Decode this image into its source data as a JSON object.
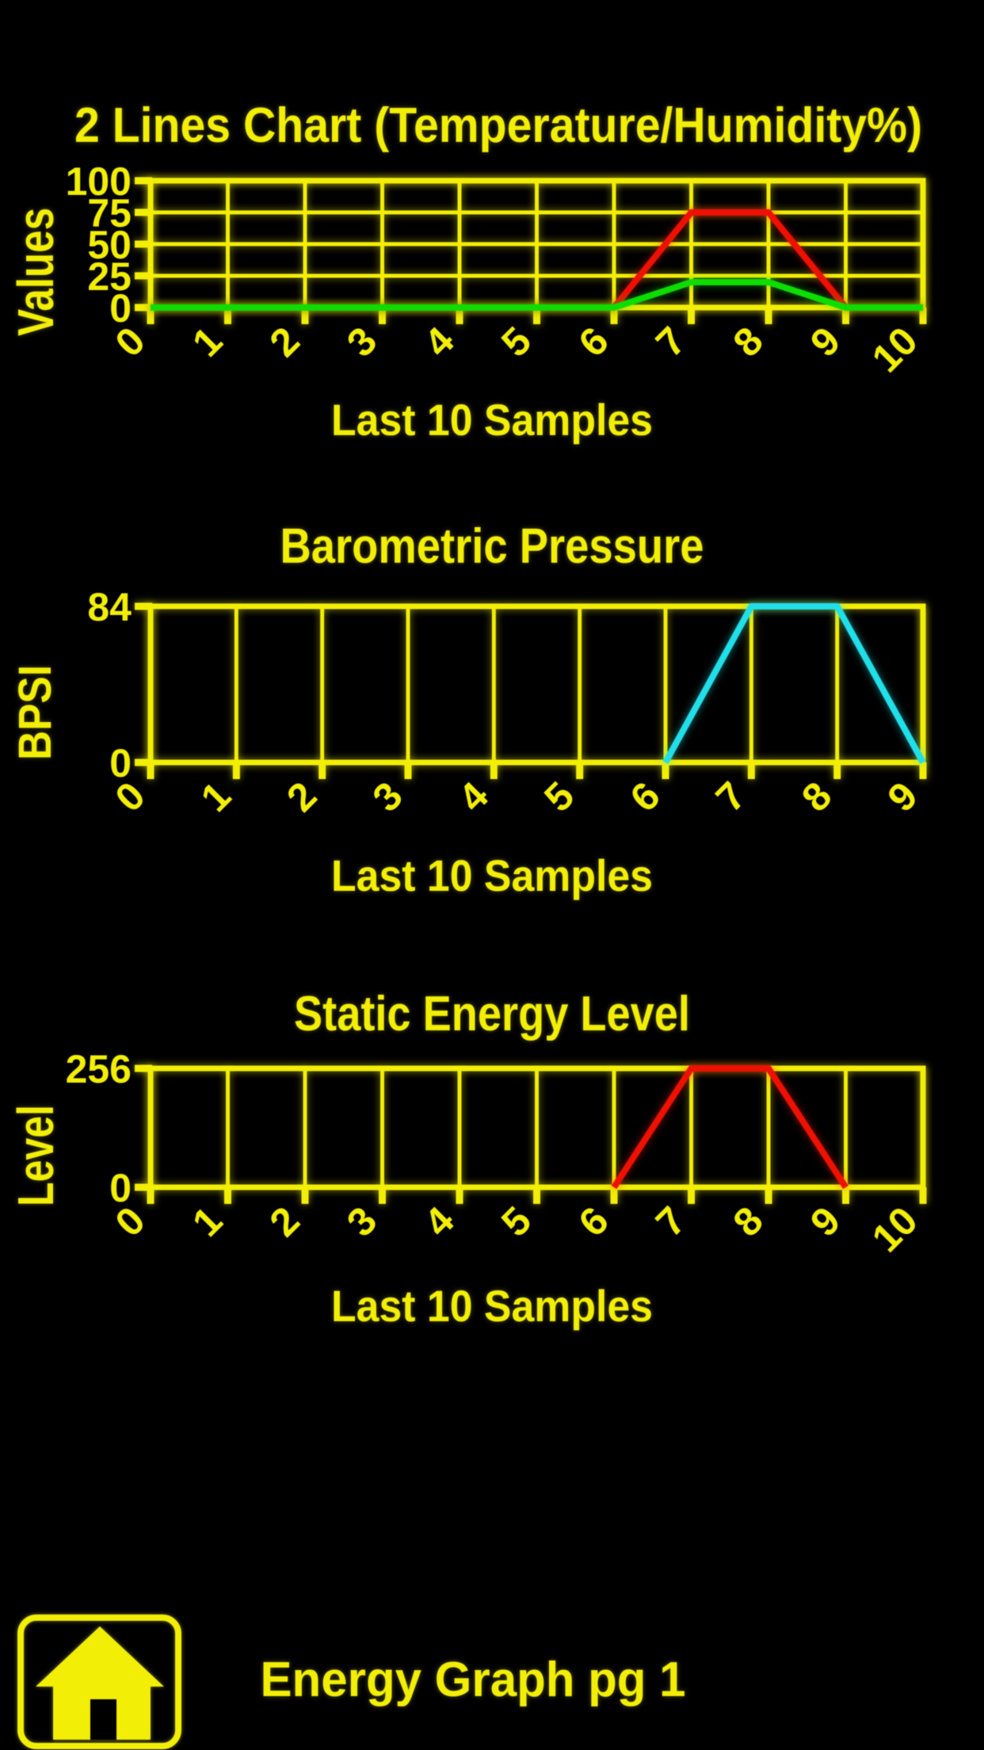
{
  "app": {
    "background": "#000000",
    "accent": "#f2ee06"
  },
  "chart_data": [
    {
      "type": "line",
      "title": "2 Lines Chart (Temperature/Humidity%)",
      "xlabel": "Last 10 Samples",
      "ylabel": "Values",
      "xlim": [
        0,
        10
      ],
      "ylim": [
        0,
        100
      ],
      "x_ticks": [
        0,
        1,
        2,
        3,
        4,
        5,
        6,
        7,
        8,
        9,
        10
      ],
      "y_ticks": [
        0,
        25,
        50,
        75,
        100
      ],
      "grid_horizontal": true,
      "grid_vertical": true,
      "legend": "none",
      "series": [
        {
          "name": "temperature",
          "color": "#ee1000",
          "x": [
            0,
            1,
            2,
            3,
            4,
            5,
            6,
            7,
            8,
            9,
            10
          ],
          "values": [
            0,
            0,
            0,
            0,
            0,
            0,
            0,
            75,
            75,
            0,
            0
          ]
        },
        {
          "name": "humidity",
          "color": "#0ddd00",
          "x": [
            0,
            1,
            2,
            3,
            4,
            5,
            6,
            7,
            8,
            9,
            10
          ],
          "values": [
            0,
            0,
            0,
            0,
            0,
            0,
            0,
            20,
            20,
            0,
            0
          ]
        }
      ]
    },
    {
      "type": "line",
      "title": "Barometric Pressure",
      "xlabel": "Last 10 Samples",
      "ylabel": "BPSI",
      "xlim": [
        0,
        9
      ],
      "ylim": [
        0,
        84
      ],
      "x_ticks": [
        0,
        1,
        2,
        3,
        4,
        5,
        6,
        7,
        8,
        9
      ],
      "y_ticks": [
        0,
        84
      ],
      "grid_horizontal": false,
      "grid_vertical": true,
      "legend": "none",
      "series": [
        {
          "name": "pressure",
          "color": "#21dfe8",
          "x": [
            6,
            7,
            8,
            9
          ],
          "values": [
            0,
            84,
            84,
            0
          ]
        }
      ]
    },
    {
      "type": "line",
      "title": "Static Energy Level",
      "xlabel": "Last 10 Samples",
      "ylabel": "Level",
      "xlim": [
        0,
        10
      ],
      "ylim": [
        0,
        256
      ],
      "x_ticks": [
        0,
        1,
        2,
        3,
        4,
        5,
        6,
        7,
        8,
        9,
        10
      ],
      "y_ticks": [
        0,
        256
      ],
      "grid_horizontal": false,
      "grid_vertical": true,
      "legend": "none",
      "series": [
        {
          "name": "energy",
          "color": "#ee1000",
          "x": [
            6,
            7,
            8,
            9
          ],
          "values": [
            0,
            256,
            256,
            0
          ]
        }
      ]
    }
  ],
  "footer": {
    "label": "Energy Graph pg 1",
    "home_icon": "home-icon"
  }
}
